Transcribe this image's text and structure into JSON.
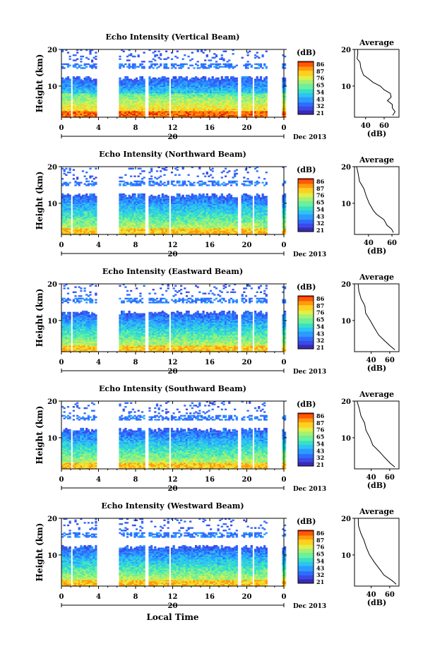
{
  "colorbar": {
    "unit": "(dB)",
    "ticks_1": [
      "86",
      "87",
      "76",
      "65",
      "54",
      "43",
      "32",
      "21"
    ],
    "ticks_2": [
      "86",
      "87",
      "76",
      "65",
      "54",
      "43",
      "32",
      "21"
    ],
    "ticks_3": [
      "86",
      "87",
      "76",
      "65",
      "54",
      "43",
      "32",
      "21"
    ],
    "ticks_4": [
      "86",
      "87",
      "76",
      "65",
      "54",
      "43",
      "32",
      "21"
    ],
    "ticks_5": [
      "86",
      "87",
      "76",
      "65",
      "54",
      "43",
      "32",
      "21"
    ],
    "colors": [
      "#ff2a00",
      "#ffa000",
      "#f5f000",
      "#8cf07a",
      "#36e0c8",
      "#2a9cff",
      "#3a5af0",
      "#3a2ab4"
    ]
  },
  "x_axis": {
    "ticks": [
      "0",
      "4",
      "8",
      "12",
      "16",
      "20",
      "0"
    ],
    "date_label": "20",
    "month_label": "Dec 2013",
    "xlabel": "Local Time"
  },
  "chart_data": [
    {
      "type": "heatmap",
      "title": "Echo Intensity (Vertical Beam)",
      "ylabel": "Height (km)",
      "yticks": [
        "20",
        "10"
      ],
      "y_range_km": [
        1.5,
        20
      ],
      "x_range_hours": [
        0,
        24
      ],
      "data_gaps_hours": [
        [
          1.1,
          1.3
        ],
        [
          3.8,
          6.2
        ],
        [
          9.1,
          9.3
        ],
        [
          11.6,
          11.8
        ],
        [
          19.0,
          19.3
        ],
        [
          20.5,
          20.8
        ],
        [
          22.2,
          23.8
        ]
      ],
      "avg_profile": {
        "title": "Average",
        "xlabel": "(dB)",
        "xticks": [
          "40",
          "60"
        ],
        "yticks": [
          "20",
          "10"
        ],
        "x_range_db": [
          28,
          76
        ],
        "points": [
          [
            32,
            20
          ],
          [
            31,
            19
          ],
          [
            30,
            17.5
          ],
          [
            34,
            16.5
          ],
          [
            36,
            15
          ],
          [
            39,
            13
          ],
          [
            42,
            12
          ],
          [
            48,
            11
          ],
          [
            55,
            10
          ],
          [
            61,
            9
          ],
          [
            66,
            8
          ],
          [
            68,
            7
          ],
          [
            64,
            6
          ],
          [
            68,
            5
          ],
          [
            70,
            4
          ],
          [
            72,
            3
          ],
          [
            68,
            2
          ]
        ]
      }
    },
    {
      "type": "heatmap",
      "title": "Echo Intensity (Northward Beam)",
      "ylabel": "Height (km)",
      "yticks": [
        "20",
        "10"
      ],
      "y_range_km": [
        1.5,
        20
      ],
      "x_range_hours": [
        0,
        24
      ],
      "data_gaps_hours": [
        [
          1.1,
          1.3
        ],
        [
          3.8,
          6.2
        ],
        [
          9.1,
          9.3
        ],
        [
          11.6,
          11.8
        ],
        [
          19.0,
          19.3
        ],
        [
          20.5,
          20.8
        ],
        [
          22.2,
          23.8
        ]
      ],
      "avg_profile": {
        "title": "Average",
        "xlabel": "(dB)",
        "xticks": [
          "40",
          "60"
        ],
        "yticks": [
          "20",
          "10"
        ],
        "x_range_db": [
          28,
          66
        ],
        "points": [
          [
            30,
            20
          ],
          [
            31,
            18.5
          ],
          [
            33,
            16
          ],
          [
            35,
            14
          ],
          [
            37,
            12
          ],
          [
            40,
            10
          ],
          [
            44,
            8
          ],
          [
            48,
            7
          ],
          [
            52,
            5.5
          ],
          [
            56,
            4
          ],
          [
            60,
            3
          ],
          [
            62,
            2
          ]
        ]
      }
    },
    {
      "type": "heatmap",
      "title": "Echo Intensity (Eastward Beam)",
      "ylabel": "Height (km)",
      "yticks": [
        "20",
        "10"
      ],
      "y_range_km": [
        1.5,
        20
      ],
      "x_range_hours": [
        0,
        24
      ],
      "data_gaps_hours": [
        [
          1.1,
          1.3
        ],
        [
          3.8,
          6.2
        ],
        [
          9.1,
          9.3
        ],
        [
          11.6,
          11.8
        ],
        [
          19.0,
          19.3
        ],
        [
          20.5,
          20.8
        ],
        [
          22.2,
          23.8
        ]
      ],
      "avg_profile": {
        "title": "Average",
        "xlabel": "(dB)",
        "xticks": [
          "40",
          "60"
        ],
        "yticks": [
          "20",
          "10"
        ],
        "x_range_db": [
          22,
          70
        ],
        "points": [
          [
            25,
            20
          ],
          [
            26,
            18
          ],
          [
            28,
            16
          ],
          [
            32,
            14
          ],
          [
            35,
            12
          ],
          [
            38,
            10
          ],
          [
            43,
            8
          ],
          [
            49,
            6
          ],
          [
            55,
            4.5
          ],
          [
            62,
            3
          ],
          [
            66,
            2
          ]
        ]
      }
    },
    {
      "type": "heatmap",
      "title": "Echo Intensity (Southward Beam)",
      "ylabel": "Height (km)",
      "yticks": [
        "20",
        "10"
      ],
      "y_range_km": [
        1.5,
        20
      ],
      "x_range_hours": [
        0,
        24
      ],
      "data_gaps_hours": [
        [
          1.1,
          1.3
        ],
        [
          3.8,
          6.2
        ],
        [
          9.1,
          9.3
        ],
        [
          11.6,
          11.8
        ],
        [
          19.0,
          19.3
        ],
        [
          20.5,
          20.8
        ],
        [
          22.2,
          23.8
        ]
      ],
      "avg_profile": {
        "title": "Average",
        "xlabel": "(dB)",
        "xticks": [
          "40",
          "60"
        ],
        "yticks": [
          "20",
          "10"
        ],
        "x_range_db": [
          22,
          70
        ],
        "points": [
          [
            25,
            20
          ],
          [
            26,
            18
          ],
          [
            28,
            16
          ],
          [
            32,
            14
          ],
          [
            35,
            12
          ],
          [
            38,
            10
          ],
          [
            43,
            8
          ],
          [
            49,
            6
          ],
          [
            55,
            4.5
          ],
          [
            62,
            3
          ],
          [
            66,
            2
          ]
        ]
      }
    },
    {
      "type": "heatmap",
      "title": "Echo Intensity (Westward Beam)",
      "ylabel": "Height (km)",
      "yticks": [
        "20",
        "10"
      ],
      "y_range_km": [
        1.5,
        20
      ],
      "x_range_hours": [
        0,
        24
      ],
      "data_gaps_hours": [
        [
          1.1,
          1.3
        ],
        [
          3.8,
          6.2
        ],
        [
          9.1,
          9.3
        ],
        [
          11.6,
          11.8
        ],
        [
          19.0,
          19.3
        ],
        [
          20.5,
          20.8
        ],
        [
          22.2,
          23.8
        ]
      ],
      "avg_profile": {
        "title": "Average",
        "xlabel": "(dB)",
        "xticks": [
          "40",
          "60"
        ],
        "yticks": [
          "20",
          "10"
        ],
        "x_range_db": [
          22,
          70
        ],
        "points": [
          [
            25,
            20
          ],
          [
            26,
            18
          ],
          [
            28,
            16
          ],
          [
            32,
            14
          ],
          [
            35,
            12
          ],
          [
            38,
            10
          ],
          [
            43,
            8
          ],
          [
            49,
            6
          ],
          [
            55,
            4.5
          ],
          [
            62,
            3
          ],
          [
            66,
            2
          ]
        ]
      }
    }
  ]
}
